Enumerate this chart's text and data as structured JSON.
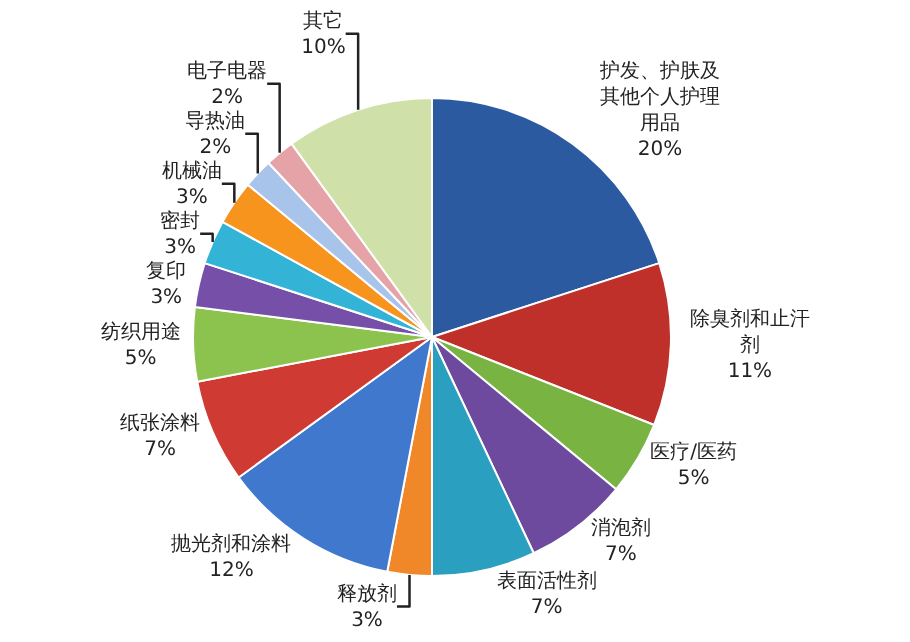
{
  "chart_data": {
    "type": "pie",
    "categories": [
      "护发、护肤及其他个人护理用品",
      "除臭剂和止汗剂",
      "医疗/医药",
      "消泡剂",
      "表面活性剂",
      "释放剂",
      "抛光剂和涂料",
      "纸张涂料",
      "纺织用途",
      "复印",
      "密封",
      "机械油",
      "导热油",
      "电子电器",
      "其它"
    ],
    "values": [
      20,
      11,
      5,
      7,
      7,
      3,
      12,
      7,
      5,
      3,
      3,
      3,
      2,
      2,
      10
    ],
    "value_labels": [
      "20%",
      "11%",
      "5%",
      "7%",
      "7%",
      "3%",
      "12%",
      "7%",
      "5%",
      "3%",
      "3%",
      "3%",
      "2%",
      "2%",
      "10%"
    ],
    "colors": [
      "#2c5aa0",
      "#c0302b",
      "#79b443",
      "#6e4a9e",
      "#2a9fbf",
      "#f0882a",
      "#3f78cc",
      "#cf3a32",
      "#8cc34f",
      "#7650a8",
      "#33b3d6",
      "#f7941d",
      "#a9c4ea",
      "#e5a3a8",
      "#cfe0a8"
    ]
  }
}
